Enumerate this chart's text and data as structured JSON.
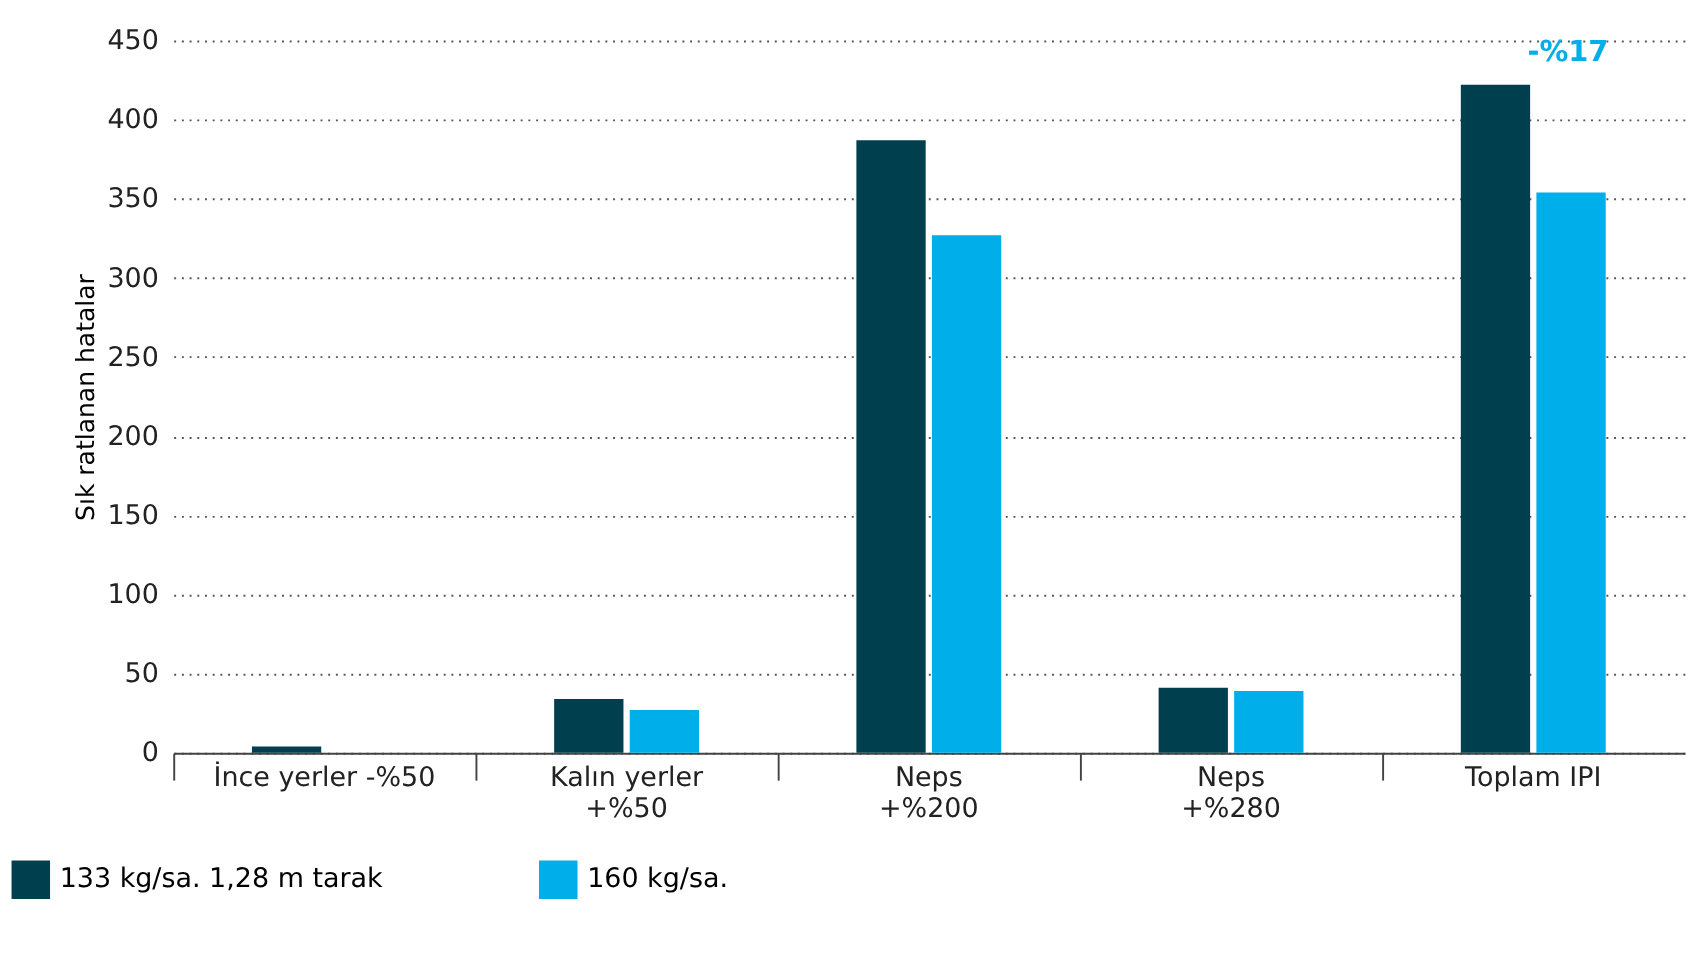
{
  "chart_data": {
    "type": "bar",
    "ylabel": "Sık ratlanan hatalar",
    "categories": [
      "İnce yerler -%50",
      "Kalın yerler\n+%50",
      "Neps\n+%200",
      "Neps\n+%280",
      "Toplam IPI"
    ],
    "series": [
      {
        "name": "133 kg/sa. 1,28 m tarak",
        "color": "#003f4d",
        "values": [
          4,
          34,
          387,
          41,
          422
        ]
      },
      {
        "name": "160 kg/sa.",
        "color": "#00aeea",
        "values": [
          0,
          27,
          327,
          39,
          354
        ]
      }
    ],
    "ylim": [
      0,
      450
    ],
    "yticks": [
      0,
      50,
      100,
      150,
      200,
      250,
      300,
      350,
      400,
      450
    ],
    "grid": "y",
    "legend": "bottom left",
    "annotations": [
      "-%17"
    ]
  }
}
